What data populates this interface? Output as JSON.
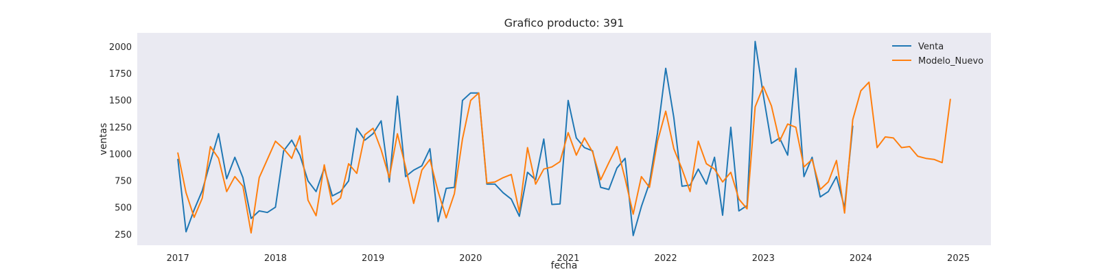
{
  "chart_data": {
    "type": "line",
    "title": "Grafico producto: 391",
    "xlabel": "fecha",
    "ylabel": "ventas",
    "x_ticks": [
      "2017",
      "2018",
      "2019",
      "2020",
      "2021",
      "2022",
      "2023",
      "2024",
      "2025"
    ],
    "y_ticks": [
      "250",
      "500",
      "750",
      "1000",
      "1250",
      "1500",
      "1750",
      "2000"
    ],
    "xlim": [
      "2016-08",
      "2025-05"
    ],
    "ylim": [
      150,
      2130
    ],
    "grid": false,
    "legend_position": "top-right",
    "background_color": "#eaeaf2",
    "series": [
      {
        "name": "Venta",
        "color": "#1f77b4",
        "start": "2017-01",
        "frequency": "monthly",
        "values": [
          950,
          275,
          480,
          660,
          930,
          1190,
          770,
          970,
          780,
          400,
          470,
          455,
          505,
          1030,
          1130,
          990,
          750,
          650,
          870,
          610,
          650,
          750,
          1240,
          1130,
          1190,
          1310,
          740,
          1540,
          790,
          850,
          890,
          1050,
          370,
          680,
          690,
          1500,
          1570,
          1570,
          720,
          720,
          640,
          580,
          420,
          830,
          760,
          1140,
          530,
          535,
          1500,
          1150,
          1060,
          1030,
          690,
          670,
          870,
          960,
          240,
          510,
          730,
          1200,
          1800,
          1340,
          700,
          710,
          860,
          720,
          970,
          430,
          1250,
          470,
          520,
          2050,
          1550,
          1100,
          1150,
          990,
          1800,
          790,
          970,
          600,
          650,
          790,
          500,
          1260
        ]
      },
      {
        "name": "Modelo_Nuevo",
        "color": "#ff7f0e",
        "start": "2017-01",
        "frequency": "monthly",
        "values": [
          1010,
          640,
          410,
          590,
          1070,
          960,
          650,
          790,
          700,
          265,
          780,
          950,
          1120,
          1050,
          960,
          1170,
          570,
          425,
          900,
          530,
          590,
          910,
          820,
          1180,
          1240,
          1040,
          780,
          1190,
          880,
          540,
          850,
          950,
          650,
          405,
          630,
          1140,
          1500,
          1570,
          730,
          740,
          780,
          810,
          460,
          1060,
          720,
          860,
          880,
          930,
          1200,
          990,
          1150,
          1020,
          760,
          920,
          1070,
          770,
          440,
          790,
          690,
          1120,
          1400,
          1050,
          860,
          650,
          1120,
          910,
          860,
          740,
          830,
          580,
          490,
          1440,
          1630,
          1450,
          1120,
          1280,
          1250,
          880,
          950,
          670,
          740,
          940,
          450,
          1320,
          1590,
          1670,
          1060,
          1160,
          1150,
          1060,
          1070,
          980,
          960,
          950,
          920,
          1510
        ]
      }
    ]
  }
}
